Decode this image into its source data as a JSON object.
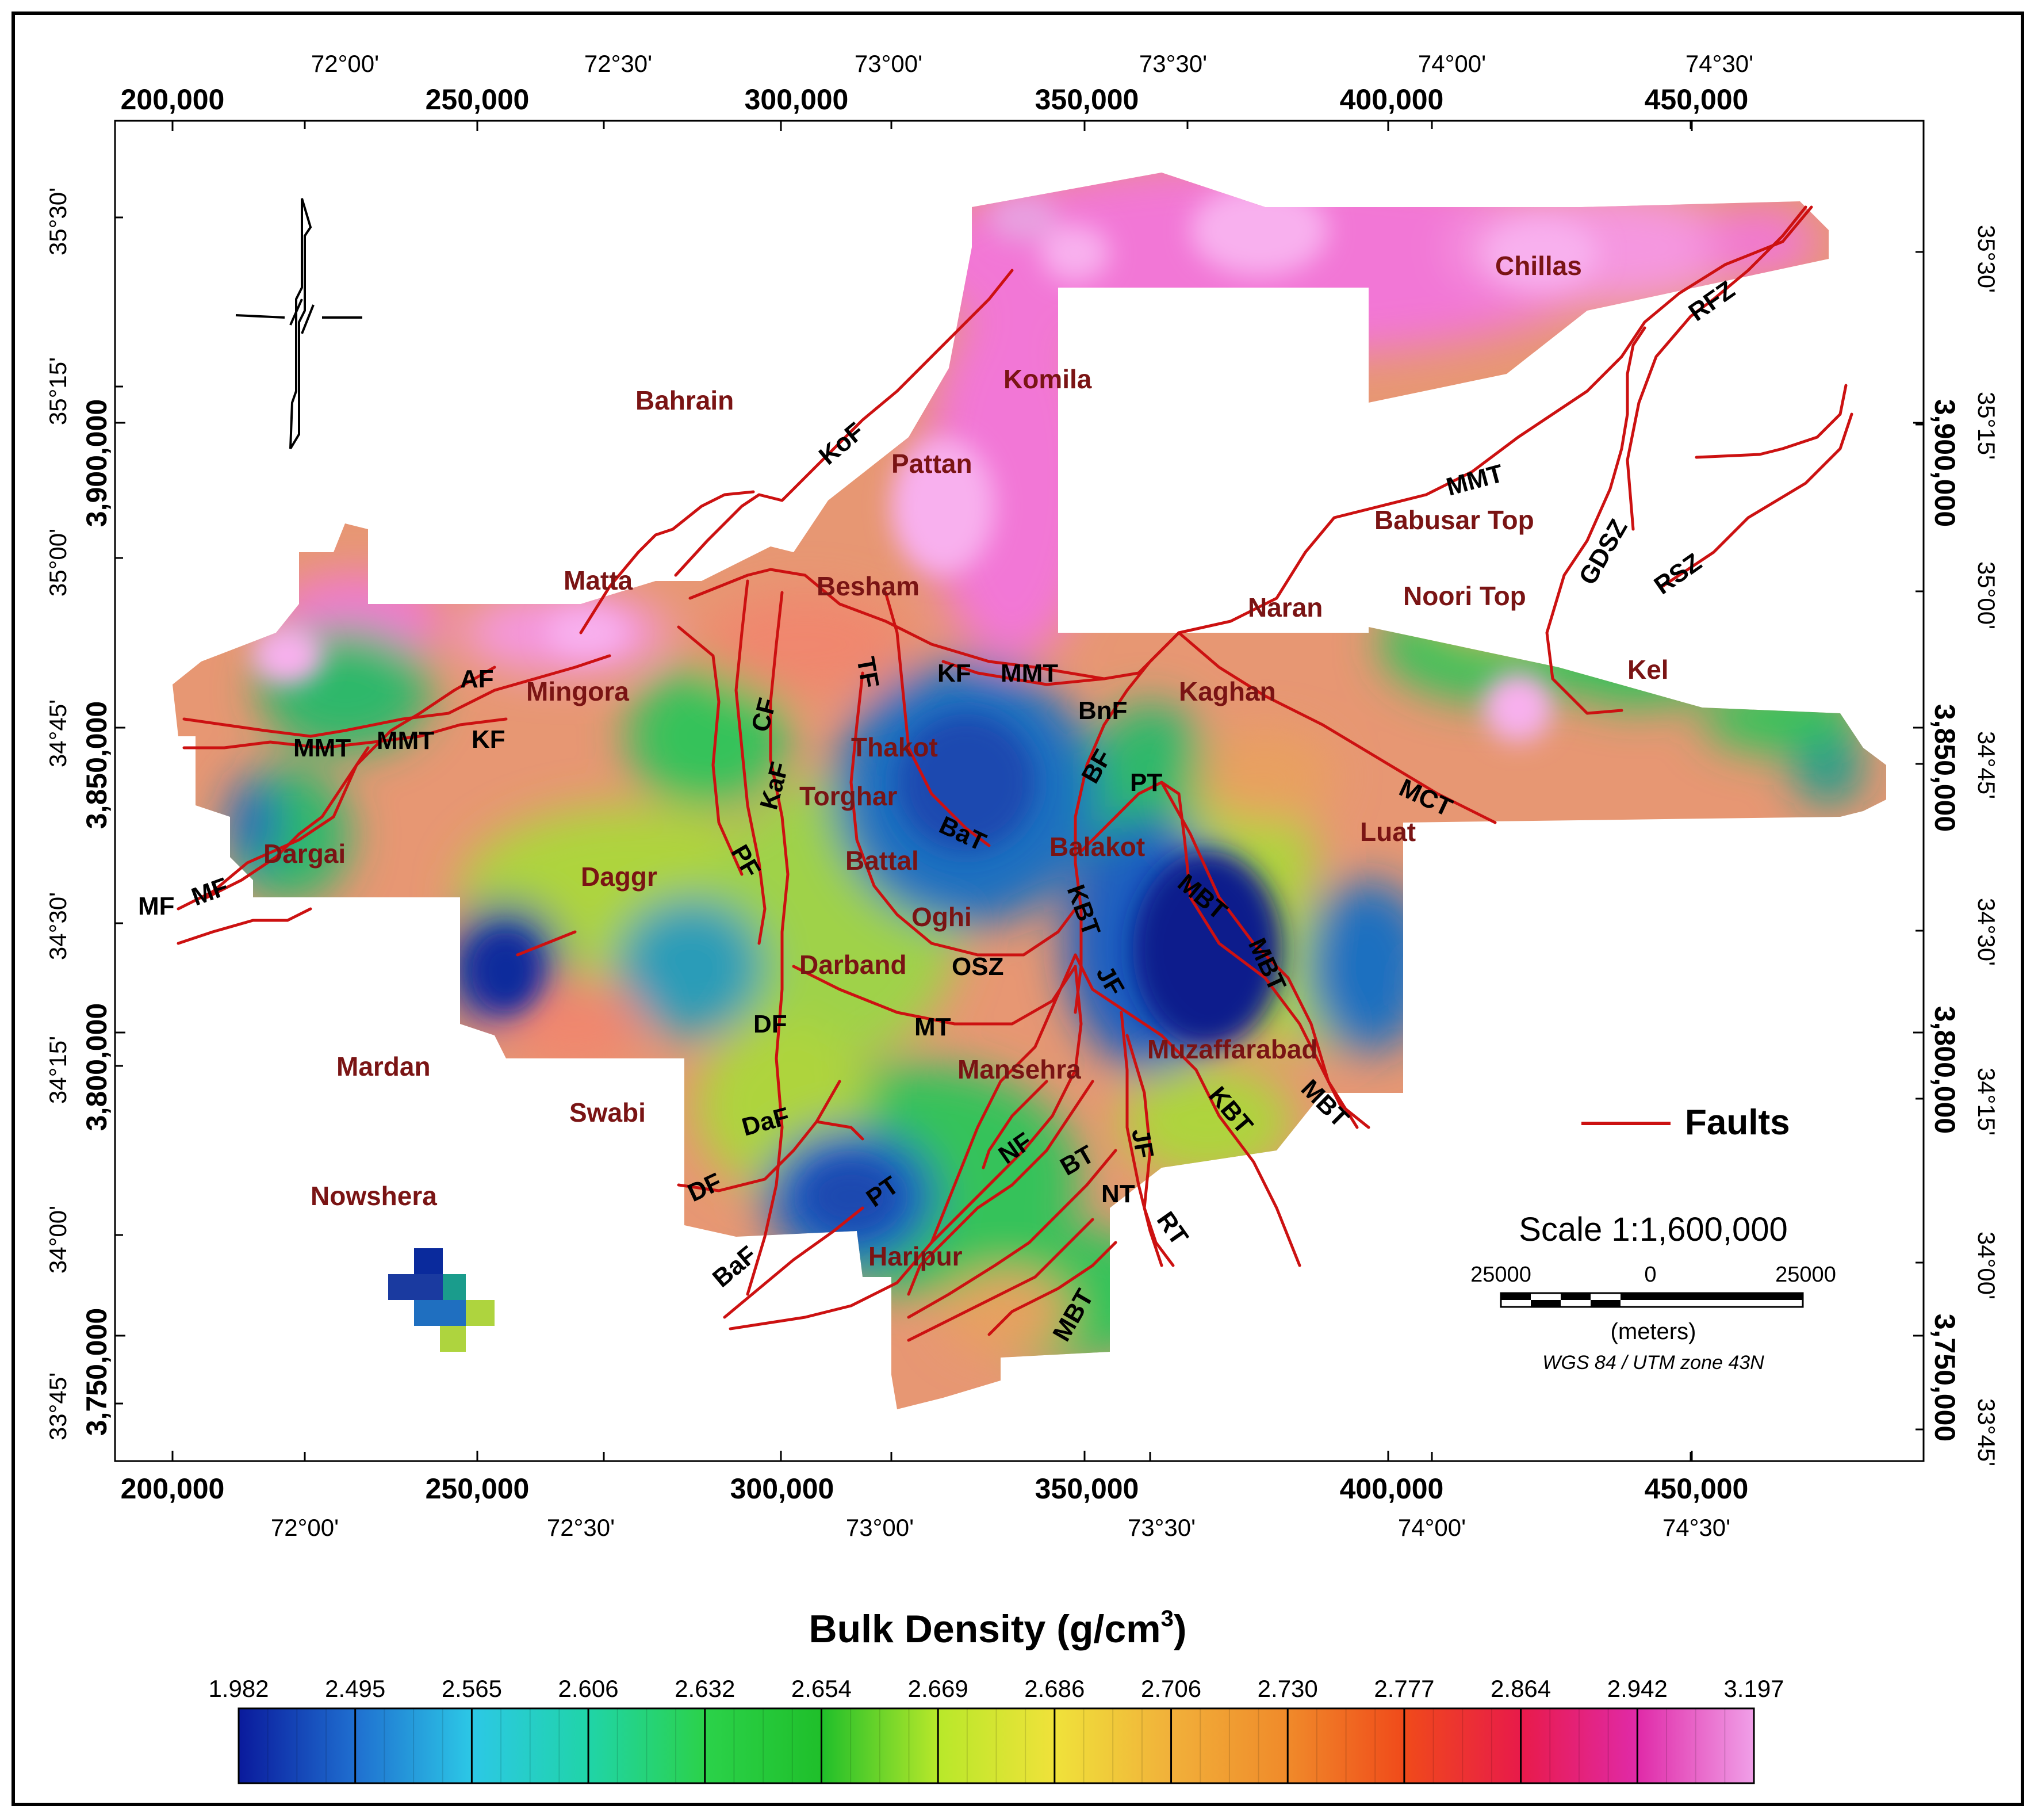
{
  "title": "Bulk Density (g/cm",
  "title_sup": "3",
  "title_close": ")",
  "axes": {
    "top_utm": [
      "200,000",
      "250,000",
      "300,000",
      "350,000",
      "400,000",
      "450,000"
    ],
    "bottom_utm": [
      "200,000",
      "250,000",
      "300,000",
      "350,000",
      "400,000",
      "450,000"
    ],
    "top_deg": [
      "72°00'",
      "72°30'",
      "73°00'",
      "73°30'",
      "74°00'",
      "74°30'"
    ],
    "bottom_deg": [
      "72°00'",
      "72°30'",
      "73°00'",
      "73°30'",
      "74°00'",
      "74°30'"
    ],
    "left_utm": [
      "3,900,000",
      "3,850,000",
      "3,800,000",
      "3,750,000"
    ],
    "right_utm": [
      "3,900,000",
      "3,850,000",
      "3,800,000",
      "3,750,000"
    ],
    "left_deg": [
      "35°30'",
      "35°15'",
      "35°00'",
      "34°45'",
      "34°30'",
      "34°15'",
      "34°00'",
      "33°45'"
    ],
    "right_deg": [
      "35°30'",
      "35°15'",
      "35°00'",
      "34°45'",
      "34°30'",
      "34°15'",
      "34°00'",
      "33°45'"
    ]
  },
  "towns": {
    "chillas": "Chillas",
    "bahrain": "Bahrain",
    "komila": "Komila",
    "pattan": "Pattan",
    "babusar": "Babusar Top",
    "matta": "Matta",
    "besham": "Besham",
    "naran": "Naran",
    "noori": "Noori Top",
    "mingora": "Mingora",
    "kaghan": "Kaghan",
    "kel": "Kel",
    "thakot": "Thakot",
    "torghar": "Torghar",
    "dargai": "Dargai",
    "daggr": "Daggr",
    "battal": "Battal",
    "balakot": "Balakot",
    "luat": "Luat",
    "oghi": "Oghi",
    "darband": "Darband",
    "mardan": "Mardan",
    "muzaffarabad": "Muzaffarabad",
    "mansehra": "Mansehra",
    "swabi": "Swabi",
    "nowshera": "Nowshera",
    "haripur": "Haripur"
  },
  "faults": {
    "rfz": "RFZ",
    "kof": "KoF",
    "mmt1": "MMT",
    "gdsz": "GDSZ",
    "rsz": "RSZ",
    "af": "AF",
    "tf": "TF",
    "kf1": "KF",
    "mmt2": "MMT",
    "cf": "CF",
    "bnf": "BnF",
    "mmt3": "MMT",
    "mmt4": "MMT",
    "kf2": "KF",
    "kaf": "KaF",
    "bf": "BF",
    "pt1": "PT",
    "mct": "MCT",
    "bat": "BaT",
    "pf": "PF",
    "mf1": "MF",
    "mf2": "MF",
    "mbt1": "MBT",
    "kbt1": "KBT",
    "mbt2": "MBT",
    "osz": "OSZ",
    "jf1": "JF",
    "df1": "DF",
    "mt": "MT",
    "kbt2": "KBT",
    "mbt3": "MBT",
    "daf": "DaF",
    "nf": "NF",
    "bt": "BT",
    "jf2": "JF",
    "df2": "DF",
    "pt2": "PT",
    "nt": "NT",
    "rt": "RT",
    "baf": "BaF",
    "mbt4": "MBT"
  },
  "legend": {
    "faults_label": "Faults"
  },
  "scale": {
    "title": "Scale 1:1,600,000",
    "left": "25000",
    "mid": "0",
    "right": "25000",
    "units": "(meters)",
    "projection": "WGS 84 / UTM zone 43N"
  },
  "colorbar": {
    "values": [
      "1.982",
      "2.495",
      "2.565",
      "2.606",
      "2.632",
      "2.654",
      "2.669",
      "2.686",
      "2.706",
      "2.730",
      "2.777",
      "2.864",
      "2.942",
      "3.197"
    ],
    "colors": [
      "#0a1a9c",
      "#1f6fd0",
      "#2cc8e6",
      "#20d4a8",
      "#2bd24a",
      "#1fbf2a",
      "#b8e82a",
      "#f0e23a",
      "#f1b03a",
      "#f08a2a",
      "#f04a1a",
      "#e81a4a",
      "#e02aa8",
      "#f0a0e8"
    ]
  },
  "colors": {
    "fault": "#cc1111",
    "town": "#7a1414",
    "pink": "#f277d6",
    "lightpink": "#f8b0ee",
    "salmon": "#f0876e",
    "green": "#36c25a",
    "teal": "#1a9c8c",
    "blue": "#1f5fc0",
    "navy": "#0a1a8c",
    "yellowgreen": "#aed43e",
    "orange": "#e8a060"
  }
}
